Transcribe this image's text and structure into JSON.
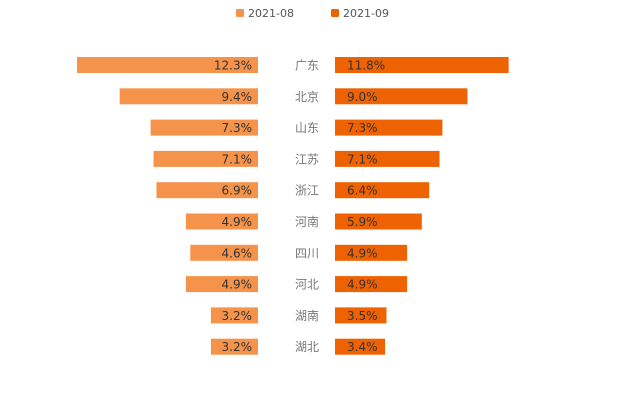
{
  "chart_data": {
    "type": "bar",
    "orientation": "horizontal-butterfly",
    "categories": [
      "广东",
      "北京",
      "山东",
      "江苏",
      "浙江",
      "河南",
      "四川",
      "河北",
      "湖南",
      "湖北"
    ],
    "series": [
      {
        "name": "2021-08",
        "color": "#F5934B",
        "side": "left",
        "values": [
          12.3,
          9.4,
          7.3,
          7.1,
          6.9,
          4.9,
          4.6,
          4.9,
          3.2,
          3.2
        ],
        "labels": [
          "12.3%",
          "9.4%",
          "7.3%",
          "7.1%",
          "6.9%",
          "4.9%",
          "4.6%",
          "4.9%",
          "3.2%",
          "3.2%"
        ]
      },
      {
        "name": "2021-09",
        "color": "#EE6202",
        "side": "right",
        "values": [
          11.8,
          9.0,
          7.3,
          7.1,
          6.4,
          5.9,
          4.9,
          4.9,
          3.5,
          3.4
        ],
        "labels": [
          "11.8%",
          "9.0%",
          "7.3%",
          "7.1%",
          "6.4%",
          "5.9%",
          "4.9%",
          "4.9%",
          "3.5%",
          "3.4%"
        ]
      }
    ],
    "unit": "%",
    "legend_position": "top-center",
    "grid": false,
    "title": "",
    "xlabel": "",
    "ylabel": ""
  }
}
